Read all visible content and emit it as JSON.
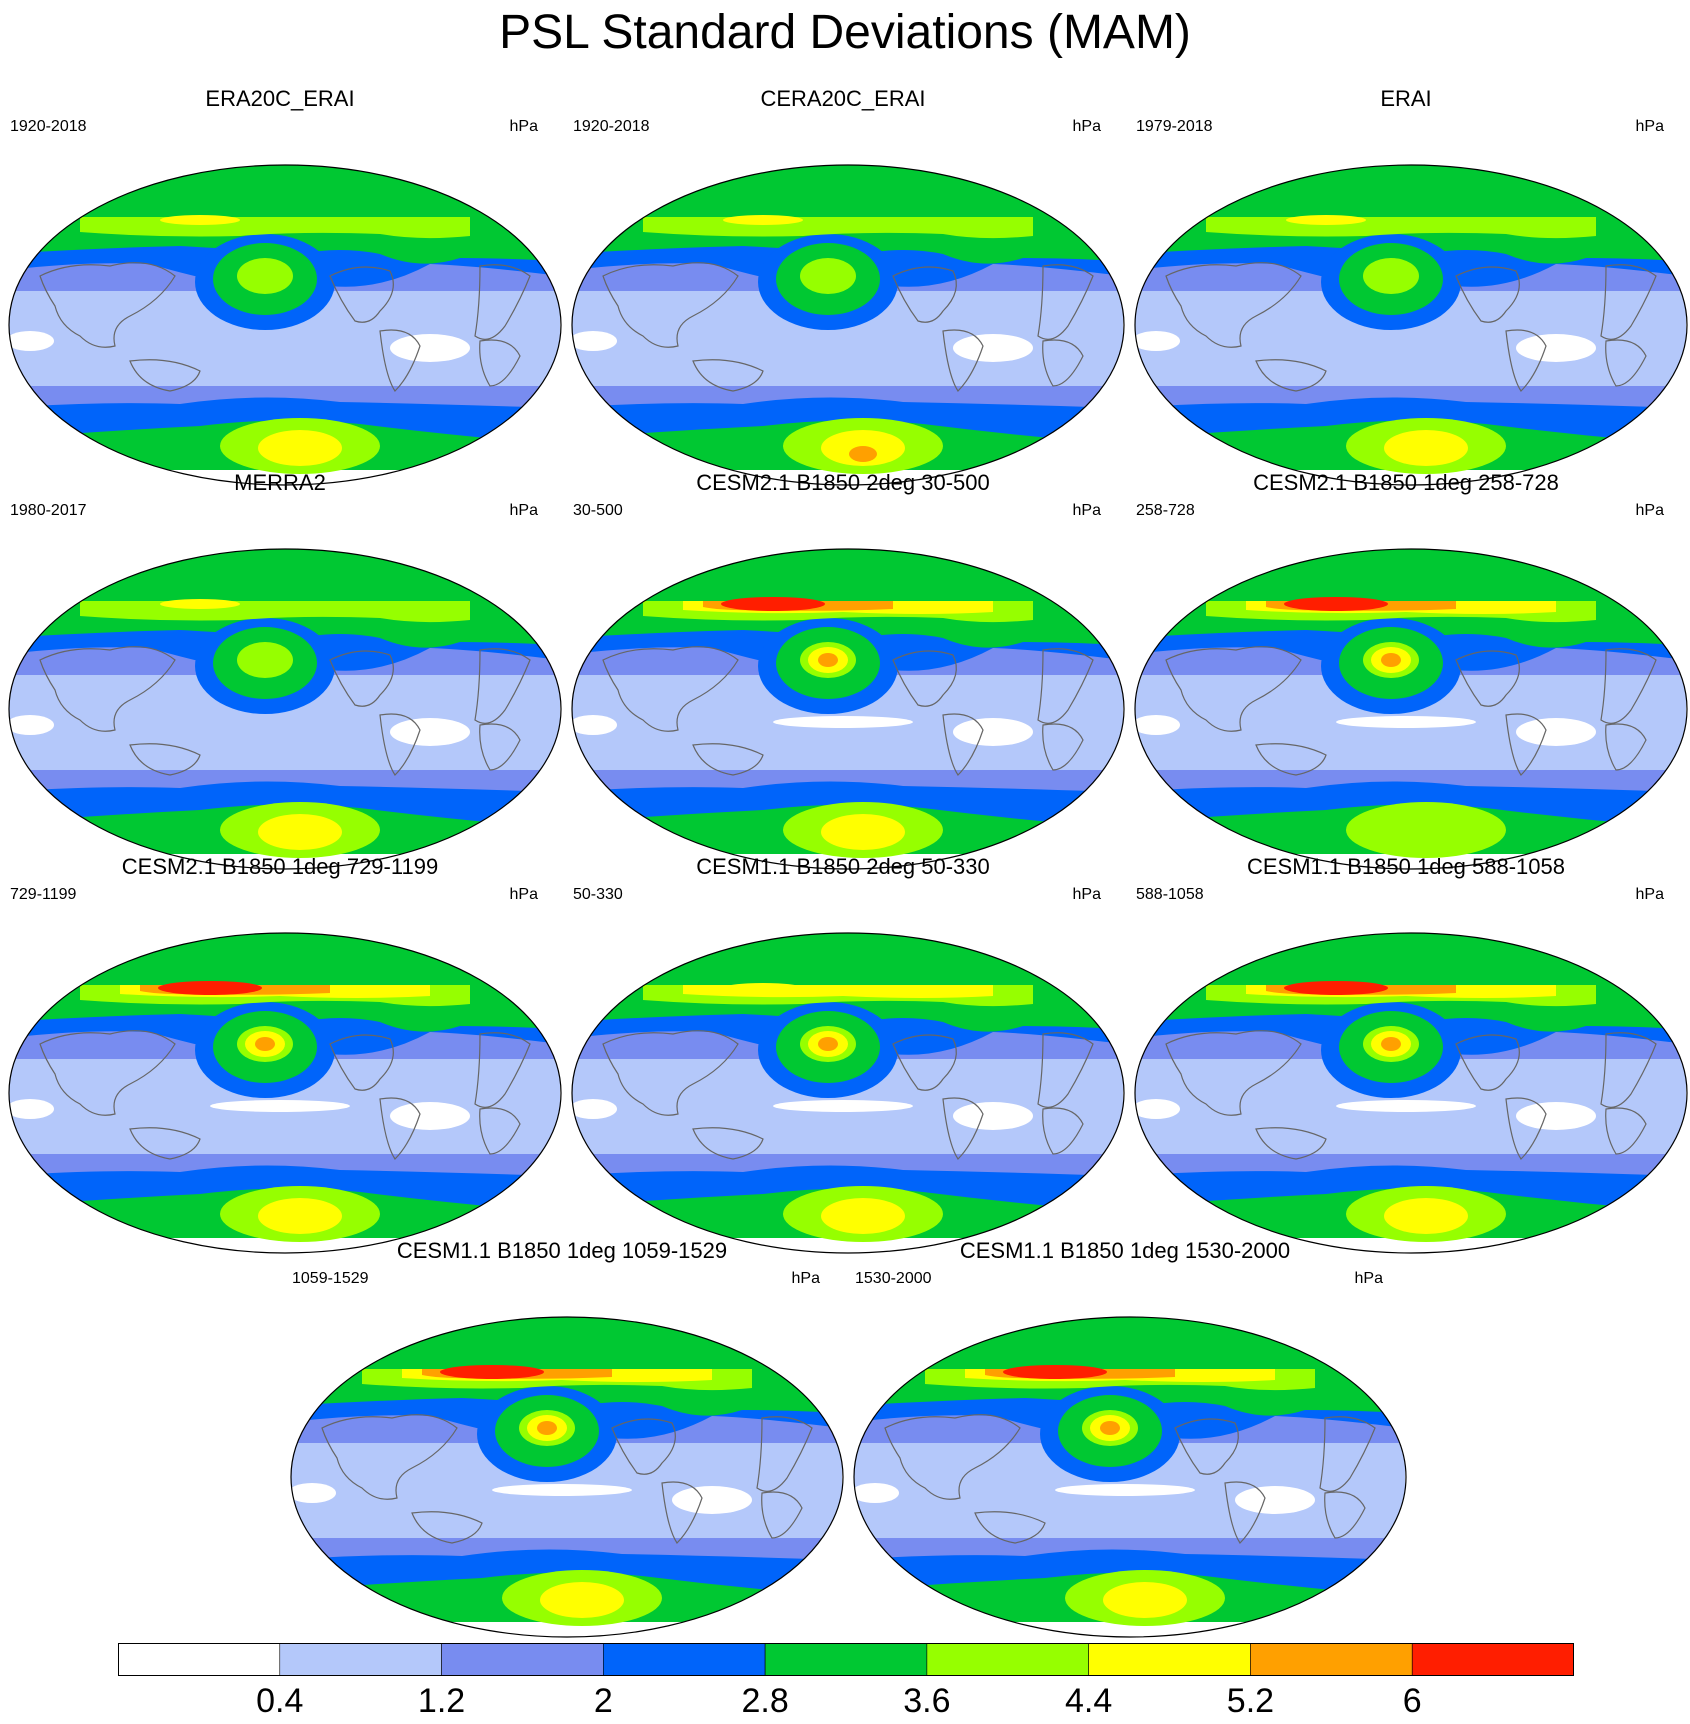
{
  "title": "PSL Standard Deviations (MAM)",
  "panels": [
    {
      "title": "ERA20C_ERAI",
      "left": "1920-2018",
      "right": "hPa",
      "style": "obs",
      "southMax": 5,
      "northMax": 4,
      "hasWhite": true
    },
    {
      "title": "CERA20C_ERAI",
      "left": "1920-2018",
      "right": "hPa",
      "style": "obs",
      "southMax": 6,
      "northMax": 4,
      "hasWhite": true
    },
    {
      "title": "ERAI",
      "left": "1979-2018",
      "right": "hPa",
      "style": "obs",
      "southMax": 5,
      "northMax": 4,
      "hasWhite": true
    },
    {
      "title": "MERRA2",
      "left": "1980-2017",
      "right": "hPa",
      "style": "obs",
      "southMax": 5,
      "northMax": 4,
      "hasWhite": true
    },
    {
      "title": "CESM2.1 B1850 2deg 30-500",
      "left": "30-500",
      "right": "hPa",
      "style": "model",
      "southMax": 5,
      "northMax": 6,
      "hasWhite": true
    },
    {
      "title": "CESM2.1 B1850 1deg 258-728",
      "left": "258-728",
      "right": "hPa",
      "style": "model",
      "southMax": 4,
      "northMax": 6,
      "hasWhite": true
    },
    {
      "title": "CESM2.1 B1850 1deg 729-1199",
      "left": "729-1199",
      "right": "hPa",
      "style": "model",
      "southMax": 5,
      "northMax": 6,
      "hasWhite": true
    },
    {
      "title": "CESM1.1 B1850 2deg 50-330",
      "left": "50-330",
      "right": "hPa",
      "style": "model",
      "southMax": 5,
      "northMax": 5,
      "hasWhite": true
    },
    {
      "title": "CESM1.1 B1850 1deg 588-1058",
      "left": "588-1058",
      "right": "hPa",
      "style": "model",
      "southMax": 5,
      "northMax": 6,
      "hasWhite": true
    },
    {
      "title": "CESM1.1 B1850 1deg 1059-1529",
      "left": "1059-1529",
      "right": "hPa",
      "style": "model",
      "southMax": 5,
      "northMax": 6,
      "hasWhite": true
    },
    {
      "title": "CESM1.1 B1850 1deg 1530-2000",
      "left": "1530-2000",
      "right": "hPa",
      "style": "model",
      "southMax": 5,
      "northMax": 6,
      "hasWhite": true
    }
  ],
  "colorbar": {
    "colors": [
      "#ffffff",
      "#b4c8fa",
      "#788cf0",
      "#0064fa",
      "#00c832",
      "#96ff00",
      "#ffff00",
      "#ffa000",
      "#ff1e00"
    ],
    "labels": [
      "0.4",
      "1.2",
      "2",
      "2.8",
      "3.6",
      "4.4",
      "5.2",
      "6"
    ]
  }
}
